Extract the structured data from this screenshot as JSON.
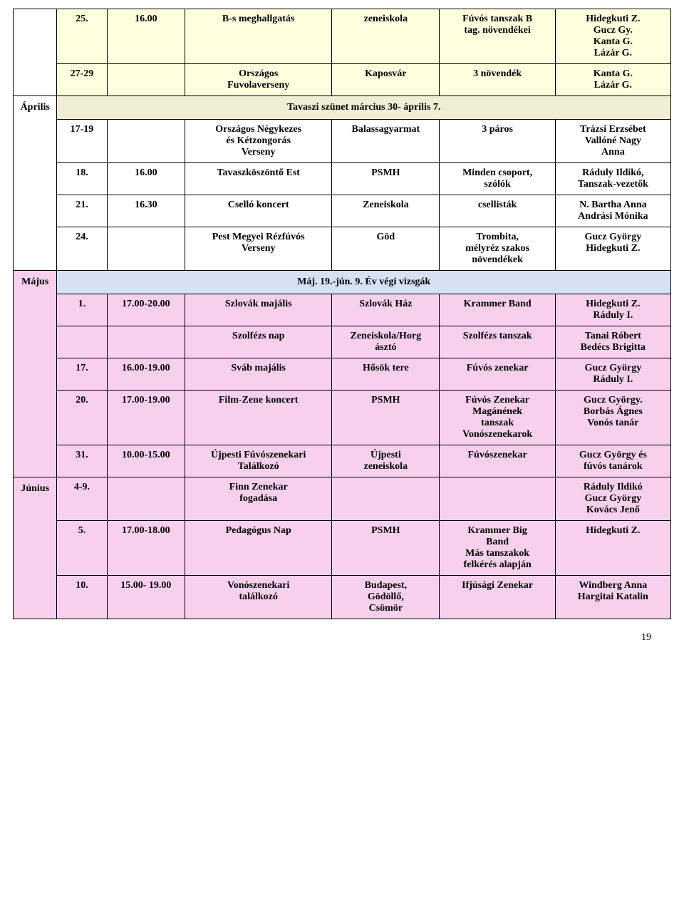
{
  "colors": {
    "border": "#000000",
    "text": "#000000",
    "bg_white": "#ffffff",
    "bg_May": "#f7d0ed",
    "bg_April": "#ffffe0",
    "bg_springBreak": "#f0eed4",
    "bg_mayBanner": "#d6e1f4"
  },
  "months": {
    "april": "Április",
    "may": "Május",
    "june": "Június"
  },
  "banners": {
    "springBreak": "Tavaszi szünet március 30- április 7.",
    "mayExams": "Máj. 19.-jún. 9. Év végi vizsgák"
  },
  "r25": {
    "c1": "25.",
    "c2": "16.00",
    "c3": "B-s meghallgatás",
    "c4": "zeneiskola",
    "c5": "Fúvós tanszak B\ntag. növendékei",
    "c6": "Hidegkuti Z.\nGucz Gy.\nKanta G.\nLázár G."
  },
  "r2729": {
    "c1": "27-29",
    "c2": "",
    "c3": "Országos\nFuvolaverseny",
    "c4": "Kaposvár",
    "c5": "3 növendék",
    "c6": "Kanta G.\nLázár G."
  },
  "r1719": {
    "c1": "17-19",
    "c2": "",
    "c3": "Országos Négykezes\nés Kétzongorás\nVerseny",
    "c4": "Balassagyarmat",
    "c5": "3 páros",
    "c6": "Trázsi Erzsébet\nVallóné Nagy\nAnna"
  },
  "r18": {
    "c1": "18.",
    "c2": "16.00",
    "c3": "Tavaszköszöntő Est",
    "c4": "PSMH",
    "c5": "Minden csoport,\nszólók",
    "c6": "Ráduly Ildikó,\nTanszak-vezetők"
  },
  "r21": {
    "c1": "21.",
    "c2": "16.30",
    "c3": "Cselló koncert",
    "c4": "Zeneiskola",
    "c5": "csellisták",
    "c6": "N. Bartha Anna\nAndrási Mónika"
  },
  "r24": {
    "c1": "24.",
    "c2": "",
    "c3": "Pest Megyei Rézfúvós\nVerseny",
    "c4": "Göd",
    "c5": "Trombita,\nmélyréz szakos\nnövendékek",
    "c6": "Gucz György\nHidegkuti Z."
  },
  "r1": {
    "c1": "1.",
    "c2": "17.00-20.00",
    "c3": "Szlovák majális",
    "c4": "Szlovák Ház",
    "c5": "Krammer Band",
    "c6": "Hidegkuti Z.\nRáduly I."
  },
  "rSolf": {
    "c1": "",
    "c2": "",
    "c3": "Szolfézs nap",
    "c4": "Zeneiskola/Horg\násztó",
    "c5": "Szolfézs tanszak",
    "c6": "Tanai Róbert\nBedécs Brigitta"
  },
  "r17m": {
    "c1": "17.",
    "c2": "16.00-19.00",
    "c3": "Sváb majális",
    "c4": "Hősök tere",
    "c5": "Fúvós zenekar",
    "c6": "Gucz György\nRáduly I."
  },
  "r20": {
    "c1": "20.",
    "c2": "17.00-19.00",
    "c3": "Film-Zene koncert",
    "c4": "PSMH",
    "c5": "Fúvós Zenekar\nMagánének\ntanszak\nVonószenekarok",
    "c6": "Gucz György.\nBorbás Ágnes\nVonós tanár"
  },
  "r31": {
    "c1": "31.",
    "c2": "10.00-15.00",
    "c3": "Újpesti Fúvószenekari\nTalálkozó",
    "c4": "Újpesti\nzeneiskola",
    "c5": "Fúvószenekar",
    "c6": "Gucz György és\nfúvós tanárok"
  },
  "r49": {
    "c1": "4-9.",
    "c2": "",
    "c3": "Finn Zenekar\nfogadása",
    "c4": "",
    "c5": "",
    "c6": "Ráduly Ildikó\nGucz György\nKovács Jenő"
  },
  "r5": {
    "c1": "5.",
    "c2": "17.00-18.00",
    "c3": "Pedagógus Nap",
    "c4": "PSMH",
    "c5": "Krammer Big\nBand\nMás tanszakok\nfelkérés alapján",
    "c6": "Hidegkuti Z."
  },
  "r10": {
    "c1": "10.",
    "c2": "15.00- 19.00",
    "c3": "Vonószenekari\ntalálkozó",
    "c4": "Budapest,\nGödöllő,\nCsömör",
    "c5": "Ifjúsági Zenekar",
    "c6": "Windberg Anna\nHargitai Katalin"
  },
  "pageNumber": "19"
}
